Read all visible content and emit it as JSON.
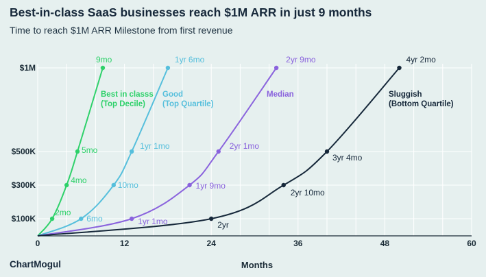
{
  "brand": "ChartMogul",
  "chart_data": {
    "type": "line",
    "title": "Best-in-class SaaS businesses reach $1M ARR in just 9 months",
    "subtitle": "Time to reach $1M ARR Milestone from first revenue",
    "xlabel": "Months",
    "ylabel": "",
    "xlim": [
      0,
      60
    ],
    "x_ticks": [
      0,
      12,
      24,
      36,
      48,
      60
    ],
    "y_ticks": [
      {
        "value": 100000,
        "label": "$100K"
      },
      {
        "value": 300000,
        "label": "$300K"
      },
      {
        "value": 500000,
        "label": "$500K"
      },
      {
        "value": 1000000,
        "label": "$1M"
      }
    ],
    "grid": true,
    "series": [
      {
        "name": "Best in classs\n(Top Decile)",
        "color": "#2ed16a",
        "points": [
          {
            "x": 0,
            "y": 0
          },
          {
            "x": 2,
            "y": 100000,
            "label": "2mo"
          },
          {
            "x": 4,
            "y": 300000,
            "label": "4mo"
          },
          {
            "x": 5.5,
            "y": 500000,
            "label": "5mo"
          },
          {
            "x": 9,
            "y": 1000000,
            "label": "9mo"
          }
        ]
      },
      {
        "name": "Good\n(Top Quartile)",
        "color": "#56bfdc",
        "points": [
          {
            "x": 0,
            "y": 0
          },
          {
            "x": 6,
            "y": 100000,
            "label": "6mo"
          },
          {
            "x": 10.5,
            "y": 300000,
            "label": "10mo"
          },
          {
            "x": 13,
            "y": 500000,
            "label": "1yr 1mo"
          },
          {
            "x": 18,
            "y": 1000000,
            "label": "1yr 6mo"
          }
        ]
      },
      {
        "name": "Median",
        "color": "#8a63dd",
        "points": [
          {
            "x": 0,
            "y": 0
          },
          {
            "x": 13,
            "y": 100000,
            "label": "1yr 1mo"
          },
          {
            "x": 21,
            "y": 300000,
            "label": "1yr 9mo"
          },
          {
            "x": 25,
            "y": 500000,
            "label": "2yr 1mo"
          },
          {
            "x": 33,
            "y": 1000000,
            "label": "2yr 9mo"
          }
        ]
      },
      {
        "name": "Sluggish\n(Bottom Quartile)",
        "color": "#16283a",
        "points": [
          {
            "x": 0,
            "y": 0
          },
          {
            "x": 24,
            "y": 100000,
            "label": "2yr"
          },
          {
            "x": 34,
            "y": 300000,
            "label": "2yr 10mo"
          },
          {
            "x": 40,
            "y": 500000,
            "label": "3yr 4mo"
          },
          {
            "x": 50,
            "y": 1000000,
            "label": "4yr 2mo"
          }
        ]
      }
    ]
  }
}
